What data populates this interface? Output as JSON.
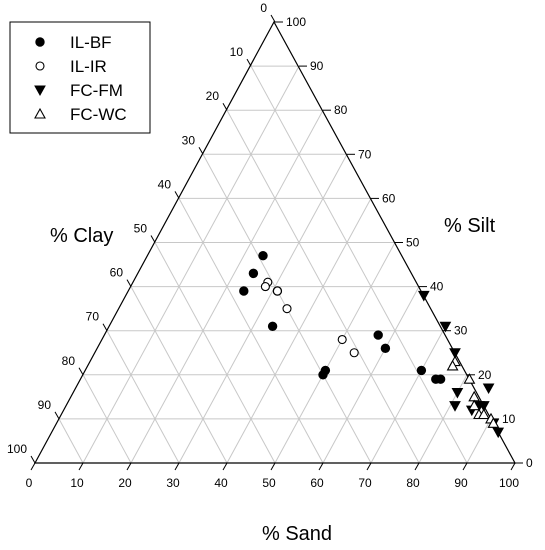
{
  "chart_data": {
    "type": "scatter",
    "subtype": "ternary",
    "axes": {
      "sand": {
        "label": "% Sand",
        "range": [
          0,
          100
        ],
        "ticks": [
          0,
          10,
          20,
          30,
          40,
          50,
          60,
          70,
          80,
          90,
          100
        ],
        "position": "bottom"
      },
      "silt": {
        "label": "% Silt",
        "range": [
          0,
          100
        ],
        "ticks": [
          0,
          10,
          20,
          30,
          40,
          50,
          60,
          70,
          80,
          90,
          100
        ],
        "position": "right"
      },
      "clay": {
        "label": "% Clay",
        "range": [
          0,
          100
        ],
        "ticks": [
          0,
          10,
          20,
          30,
          40,
          50,
          60,
          70,
          80,
          90,
          100
        ],
        "position": "left"
      }
    },
    "grid": true,
    "grid_interval": 10,
    "legend": {
      "position": "top-left",
      "boxed": true
    },
    "series": [
      {
        "name": "IL-BF",
        "marker": "filled-circle",
        "points": [
          {
            "sand": 24,
            "silt": 47,
            "clay": 29
          },
          {
            "sand": 24,
            "silt": 43,
            "clay": 33
          },
          {
            "sand": 31,
            "silt": 39,
            "clay": 30
          },
          {
            "sand": 34,
            "silt": 31,
            "clay": 35
          },
          {
            "sand": 24,
            "silt": 39,
            "clay": 37
          },
          {
            "sand": 50,
            "silt": 21,
            "clay": 29
          },
          {
            "sand": 50,
            "silt": 20,
            "clay": 30
          },
          {
            "sand": 57,
            "silt": 29,
            "clay": 14
          },
          {
            "sand": 60,
            "silt": 26,
            "clay": 14
          },
          {
            "sand": 70,
            "silt": 21,
            "clay": 9
          },
          {
            "sand": 74,
            "silt": 19,
            "clay": 7
          },
          {
            "sand": 75,
            "silt": 19,
            "clay": 6
          }
        ]
      },
      {
        "name": "IL-IR",
        "marker": "open-circle",
        "points": [
          {
            "sand": 28,
            "silt": 41,
            "clay": 31
          },
          {
            "sand": 28,
            "silt": 40,
            "clay": 32
          },
          {
            "sand": 31,
            "silt": 39,
            "clay": 30
          },
          {
            "sand": 35,
            "silt": 35,
            "clay": 30
          },
          {
            "sand": 50,
            "silt": 28,
            "clay": 22
          },
          {
            "sand": 54,
            "silt": 25,
            "clay": 21
          }
        ]
      },
      {
        "name": "FC-FM",
        "marker": "filled-triangle-down",
        "points": [
          {
            "sand": 62,
            "silt": 38,
            "clay": 0
          },
          {
            "sand": 70,
            "silt": 31,
            "clay": -1
          },
          {
            "sand": 75,
            "silt": 25,
            "clay": 0
          },
          {
            "sand": 80,
            "silt": 16,
            "clay": 4
          },
          {
            "sand": 81,
            "silt": 13,
            "clay": 6
          },
          {
            "sand": 85,
            "silt": 12,
            "clay": 3
          },
          {
            "sand": 86,
            "silt": 13,
            "clay": 1
          },
          {
            "sand": 87,
            "silt": 13,
            "clay": 0
          },
          {
            "sand": 86,
            "silt": 17,
            "clay": -3
          },
          {
            "sand": 93,
            "silt": 7,
            "clay": 0
          },
          {
            "sand": 91,
            "silt": 9,
            "clay": 0
          }
        ]
      },
      {
        "name": "FC-WC",
        "marker": "open-triangle-up",
        "points": [
          {
            "sand": 76,
            "silt": 23,
            "clay": 1
          },
          {
            "sand": 76,
            "silt": 22,
            "clay": 2
          },
          {
            "sand": 81,
            "silt": 19,
            "clay": 0
          },
          {
            "sand": 84,
            "silt": 15,
            "clay": 1
          },
          {
            "sand": 85,
            "silt": 13,
            "clay": 2
          },
          {
            "sand": 87,
            "silt": 11,
            "clay": 2
          },
          {
            "sand": 88,
            "silt": 11,
            "clay": 1
          },
          {
            "sand": 90,
            "silt": 10,
            "clay": 0
          },
          {
            "sand": 91,
            "silt": 9,
            "clay": 0
          }
        ]
      }
    ]
  }
}
